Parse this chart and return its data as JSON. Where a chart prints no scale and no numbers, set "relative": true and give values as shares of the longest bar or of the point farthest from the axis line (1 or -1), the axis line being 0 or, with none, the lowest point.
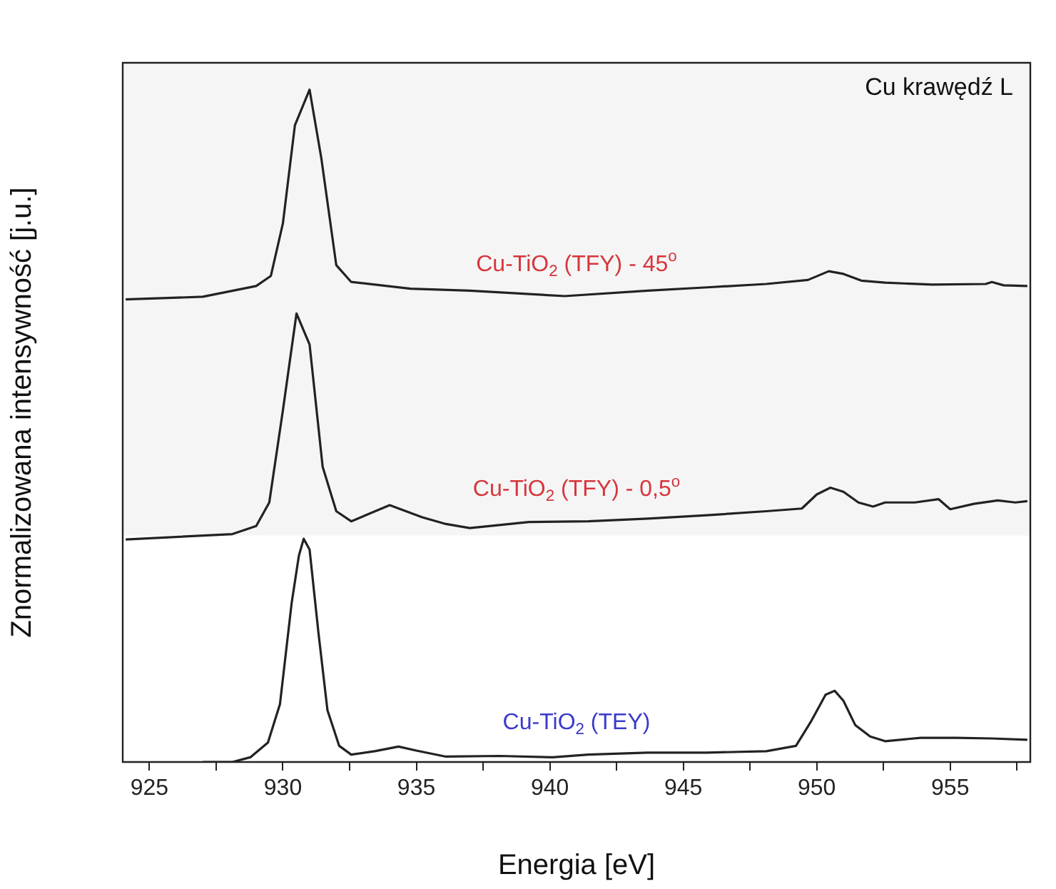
{
  "chart_data": {
    "type": "line",
    "title": "Cu krawędź L",
    "xlabel": "Energia [eV]",
    "ylabel": "Znormalizowana intensywność [j.u.]",
    "relative": true,
    "grid": false,
    "legend": false,
    "marker": "none",
    "line_style": "solid",
    "xlim": [
      924,
      958
    ],
    "xticks": [
      925,
      {
        "value": 927.5,
        "label": null
      },
      930,
      {
        "value": 932.5,
        "label": null
      },
      935,
      {
        "value": 937.5,
        "label": null
      },
      940,
      {
        "value": 942.5,
        "label": null
      },
      945,
      {
        "value": 947.5,
        "label": null
      },
      950,
      {
        "value": 952.5,
        "label": null
      },
      955,
      {
        "value": 957.5,
        "label": null
      }
    ],
    "bands": [
      {
        "axis": "y",
        "from": 0.337,
        "to": 1.04,
        "color": "#f5f5f5"
      }
    ],
    "series": [
      {
        "name": "Cu-TiO$_{2}$ (TFY) - 45$^{o}$",
        "color": "#222222",
        "x": [
          924.11,
          927.0,
          929.0,
          929.55,
          930.0,
          930.45,
          931.0,
          931.44,
          932.0,
          932.56,
          934.78,
          937.0,
          940.56,
          943.67,
          945.89,
          948.11,
          949.67,
          950.45,
          951.0,
          951.67,
          952.56,
          954.33,
          956.33,
          956.56,
          957.0,
          957.89
        ],
        "values": [
          0.688,
          0.692,
          0.708,
          0.723,
          0.801,
          0.947,
          1.0,
          0.898,
          0.739,
          0.714,
          0.704,
          0.701,
          0.693,
          0.701,
          0.706,
          0.711,
          0.717,
          0.73,
          0.726,
          0.716,
          0.713,
          0.71,
          0.711,
          0.714,
          0.709,
          0.708
        ]
      },
      {
        "name": "Cu-TiO$_{2}$ (TFY) - 0,5$^{o}$",
        "color": "#222222",
        "x": [
          924.11,
          928.11,
          929.0,
          929.49,
          930.0,
          930.51,
          931.0,
          931.49,
          932.0,
          932.56,
          934.0,
          935.22,
          936.11,
          937.0,
          939.22,
          941.44,
          943.67,
          945.89,
          948.11,
          949.44,
          950.0,
          950.51,
          951.0,
          951.56,
          952.11,
          952.56,
          953.67,
          954.56,
          955.0,
          955.89,
          956.78,
          957.44,
          957.89
        ],
        "values": [
          0.331,
          0.339,
          0.351,
          0.386,
          0.523,
          0.667,
          0.621,
          0.439,
          0.373,
          0.358,
          0.382,
          0.364,
          0.354,
          0.348,
          0.357,
          0.358,
          0.362,
          0.367,
          0.373,
          0.377,
          0.398,
          0.408,
          0.402,
          0.386,
          0.38,
          0.386,
          0.386,
          0.391,
          0.376,
          0.384,
          0.389,
          0.386,
          0.388
        ]
      },
      {
        "name": "Cu-TiO$_{2}$ (TEY)",
        "color": "#222222",
        "x": [
          927.0,
          928.11,
          928.78,
          929.44,
          929.89,
          930.33,
          930.6,
          930.78,
          931.0,
          931.33,
          931.67,
          932.11,
          932.56,
          933.44,
          934.33,
          935.0,
          936.11,
          938.11,
          940.11,
          941.44,
          943.67,
          945.89,
          948.11,
          949.22,
          949.78,
          950.33,
          950.67,
          951.0,
          951.44,
          952.0,
          952.56,
          953.89,
          955.22,
          956.56,
          957.89
        ],
        "values": [
          0.0,
          0.0,
          0.007,
          0.029,
          0.086,
          0.237,
          0.307,
          0.332,
          0.316,
          0.193,
          0.077,
          0.024,
          0.011,
          0.016,
          0.023,
          0.017,
          0.008,
          0.009,
          0.007,
          0.011,
          0.014,
          0.014,
          0.016,
          0.024,
          0.06,
          0.1,
          0.106,
          0.091,
          0.055,
          0.038,
          0.031,
          0.036,
          0.036,
          0.035,
          0.033
        ]
      }
    ]
  }
}
